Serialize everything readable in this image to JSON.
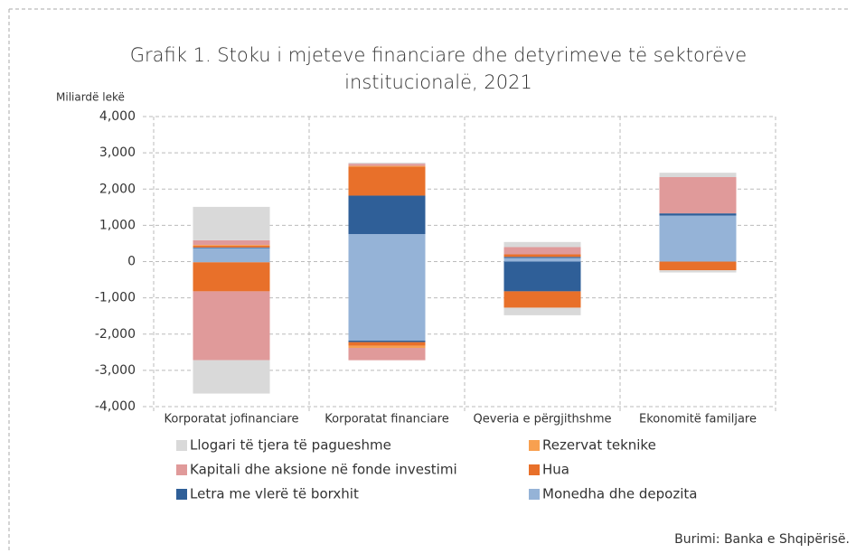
{
  "chart_data": {
    "type": "bar",
    "stacked": true,
    "title": "Grafik 1. Stoku i mjeteve financiare dhe detyrimeve të sektorëve institucionalë, 2021",
    "y_label": "Miliardë lekë",
    "source": "Burimi: Banka e Shqipërisë.",
    "categories": [
      "Korporatat jofinanciare",
      "Korporatat financiare",
      "Qeveria e përgjithshme",
      "Ekonomitë familjare"
    ],
    "series": [
      {
        "name": "Monedha dhe depozita",
        "color": "#95b3d7",
        "values": [
          370,
          760,
          100,
          1270
        ],
        "values_negative": [
          -20,
          -2180,
          0,
          0
        ]
      },
      {
        "name": "Letra me vlerë të borxhit",
        "color": "#2f5f98",
        "values": [
          20,
          1060,
          30,
          60
        ],
        "values_negative": [
          0,
          -40,
          -820,
          0
        ]
      },
      {
        "name": "Hua",
        "color": "#e8702a",
        "values": [
          50,
          800,
          70,
          0
        ],
        "values_negative": [
          -800,
          -100,
          -450,
          -240
        ]
      },
      {
        "name": "Rezervat teknike",
        "color": "#f8a050",
        "values": [
          20,
          20,
          0,
          0
        ],
        "values_negative": [
          0,
          -60,
          0,
          0
        ]
      },
      {
        "name": "Kapitali dhe aksione në fonde investimi",
        "color": "#e09a9a",
        "values": [
          130,
          60,
          200,
          1000
        ],
        "values_negative": [
          -1900,
          -340,
          0,
          0
        ]
      },
      {
        "name": "Llogari të tjera të pagueshme",
        "color": "#d9d9d9",
        "values": [
          920,
          30,
          140,
          120
        ],
        "values_negative": [
          -920,
          0,
          -210,
          -60
        ]
      }
    ],
    "ylim": [
      -4000,
      4000
    ],
    "yticks": [
      {
        "value": -4000,
        "label": "-4,000"
      },
      {
        "value": -3000,
        "label": "-3,000"
      },
      {
        "value": -2000,
        "label": "-2,000"
      },
      {
        "value": -1000,
        "label": "-1,000"
      },
      0,
      {
        "value": 1000,
        "label": "1,000"
      },
      {
        "value": 2000,
        "label": "2,000"
      },
      {
        "value": 3000,
        "label": "3,000"
      },
      {
        "value": 4000,
        "label": "4,000"
      }
    ],
    "grid": true,
    "legend": "bottom"
  }
}
